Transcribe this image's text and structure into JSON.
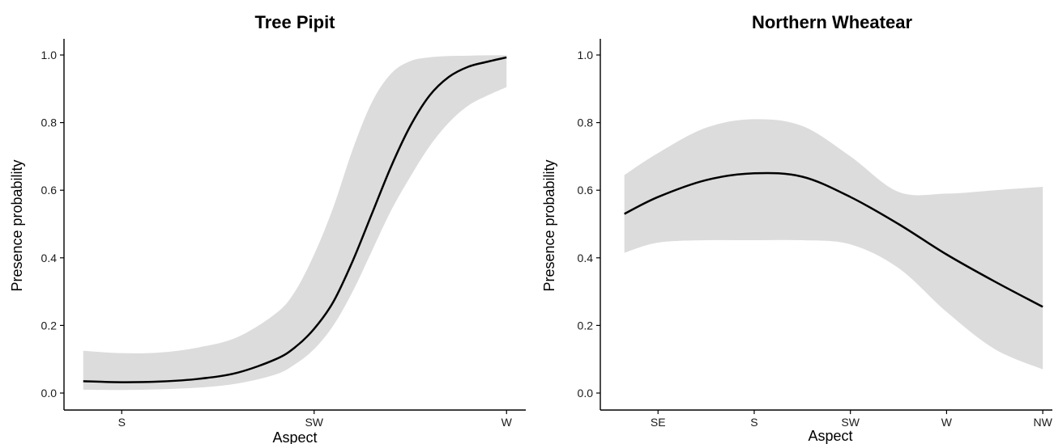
{
  "chart_data": [
    {
      "type": "line",
      "title": "Tree Pipit",
      "xlabel": "Aspect",
      "ylabel": "Presence probability",
      "x_ticks": [
        "S",
        "SW",
        "W"
      ],
      "xlim": [
        -0.3,
        2.1
      ],
      "ylim": [
        0,
        1.0
      ],
      "y_ticks": [
        "0.0",
        "0.2",
        "0.4",
        "0.6",
        "0.8",
        "1.0"
      ],
      "grid": false,
      "legend": "none",
      "series": [
        {
          "x": [
            -0.2,
            0,
            0.2,
            0.4,
            0.6,
            0.8,
            0.9,
            1.0,
            1.1,
            1.2,
            1.3,
            1.4,
            1.5,
            1.6,
            1.7,
            1.8,
            1.9,
            2.0
          ],
          "y": [
            0.035,
            0.032,
            0.034,
            0.042,
            0.06,
            0.1,
            0.135,
            0.19,
            0.27,
            0.39,
            0.53,
            0.67,
            0.79,
            0.88,
            0.935,
            0.965,
            0.98,
            0.993
          ],
          "lower": [
            0.01,
            0.009,
            0.011,
            0.016,
            0.028,
            0.055,
            0.085,
            0.13,
            0.2,
            0.3,
            0.42,
            0.54,
            0.64,
            0.73,
            0.8,
            0.85,
            0.88,
            0.905
          ],
          "upper": [
            0.125,
            0.118,
            0.12,
            0.135,
            0.165,
            0.235,
            0.3,
            0.41,
            0.55,
            0.72,
            0.86,
            0.945,
            0.982,
            0.993,
            0.997,
            0.998,
            0.999,
            0.999
          ]
        }
      ],
      "colors": {
        "line": "#000000",
        "ribbon": "#dcdcdc"
      }
    },
    {
      "type": "line",
      "title": "Northern Wheatear",
      "xlabel": "Aspect",
      "ylabel": "Presence probability",
      "x_ticks": [
        "SE",
        "S",
        "SW",
        "W",
        "NW"
      ],
      "xlim": [
        -0.6,
        4.1
      ],
      "ylim": [
        0,
        1.0
      ],
      "y_ticks": [
        "0.0",
        "0.2",
        "0.4",
        "0.6",
        "0.8",
        "1.0"
      ],
      "grid": false,
      "legend": "none",
      "series": [
        {
          "x": [
            -0.35,
            0,
            0.5,
            1.0,
            1.5,
            2.0,
            2.5,
            3.0,
            3.5,
            4.0
          ],
          "y": [
            0.53,
            0.58,
            0.63,
            0.65,
            0.64,
            0.58,
            0.5,
            0.41,
            0.33,
            0.255
          ],
          "lower": [
            0.415,
            0.445,
            0.452,
            0.452,
            0.452,
            0.44,
            0.37,
            0.24,
            0.13,
            0.07
          ],
          "upper": [
            0.645,
            0.71,
            0.785,
            0.81,
            0.79,
            0.7,
            0.595,
            0.59,
            0.6,
            0.61
          ]
        }
      ],
      "colors": {
        "line": "#000000",
        "ribbon": "#dcdcdc"
      }
    }
  ]
}
